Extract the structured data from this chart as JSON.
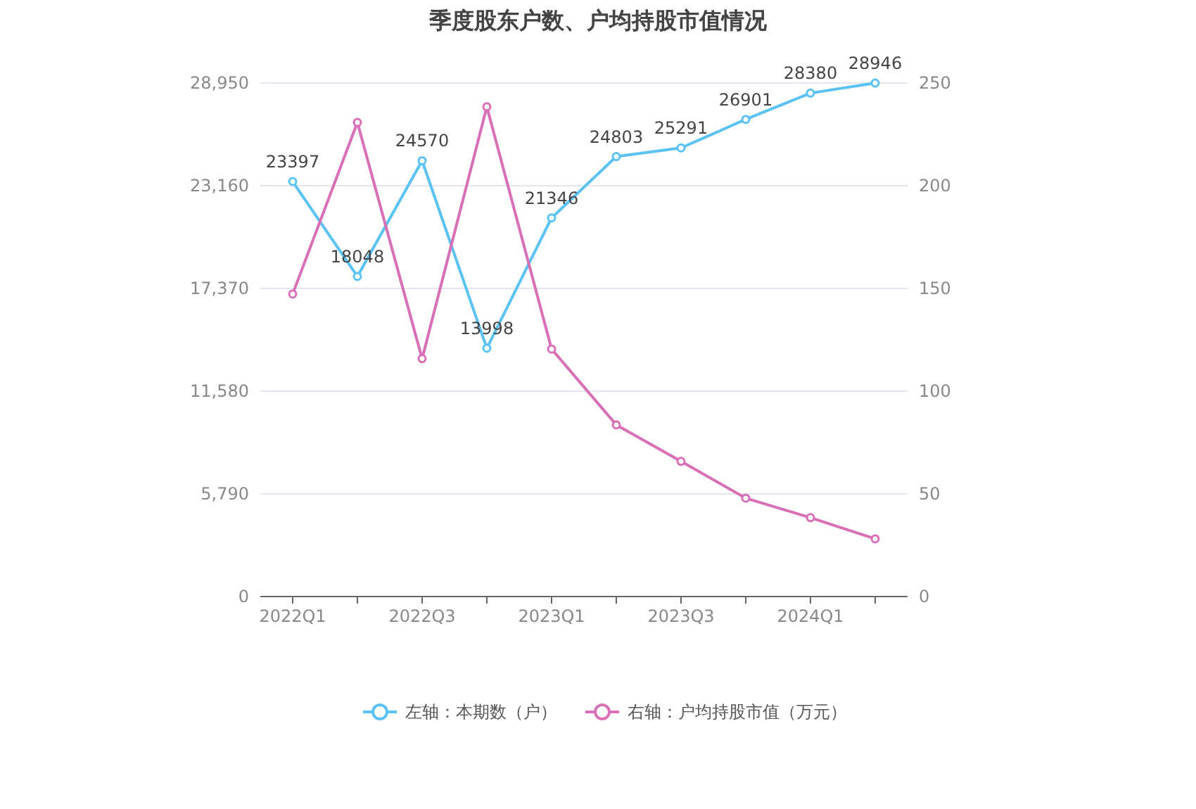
{
  "chart_data": {
    "type": "line",
    "title": "季度股东户数、户均持股市值情况",
    "categories": [
      "2022Q1",
      null,
      "2022Q3",
      null,
      "2023Q1",
      null,
      "2023Q3",
      null,
      "2024Q1",
      null
    ],
    "series": [
      {
        "name": "左轴：本期数（户）",
        "color": "#5bc2f4",
        "values": [
          23397,
          18048,
          24570,
          13998,
          21346,
          24803,
          25291,
          26901,
          28380,
          28946
        ],
        "value_labels": [
          "23397",
          "18048",
          "24570",
          "13998",
          "21346",
          "24803",
          "25291",
          "26901",
          "28380",
          "28946"
        ]
      },
      {
        "name": "右轴：户均持股市值（万元）",
        "color": "#d86fb7",
        "axis": "y2",
        "values": [
          147.3,
          230.8,
          115.8,
          238.4,
          120.5,
          83.6,
          65.8,
          47.9,
          38.4,
          28.1
        ]
      }
    ],
    "ylim": [
      0,
      28950
    ],
    "yticks": [
      0,
      {
        "value": 5790,
        "label": "5,790"
      },
      {
        "value": 11580,
        "label": "11,580"
      },
      {
        "value": 17370,
        "label": "17,370"
      },
      {
        "value": 23160,
        "label": "23,160"
      },
      {
        "value": 28950,
        "label": "28,950"
      }
    ],
    "y2lim": [
      0,
      250
    ],
    "y2ticks": [
      0,
      50,
      100,
      150,
      200,
      250
    ],
    "grid": "y",
    "legend": "bottom",
    "marker": "circle",
    "line_style": "solid"
  }
}
